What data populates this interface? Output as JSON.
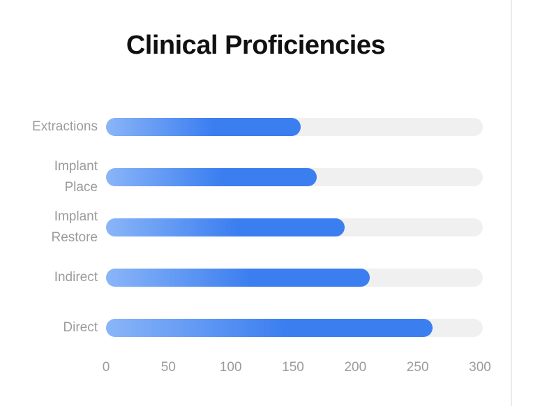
{
  "page": {
    "background": "#ffffff",
    "divider_color": "#ebebeb"
  },
  "chart_data": {
    "type": "bar",
    "orientation": "horizontal",
    "title": "Clinical Proficiencies",
    "categories": [
      "Extractions",
      "Implant Place",
      "Implant Restore",
      "Indirect",
      "Direct"
    ],
    "category_lines": [
      [
        "Extractions"
      ],
      [
        "Implant",
        "Place"
      ],
      [
        "Implant",
        "Restore"
      ],
      [
        "Indirect"
      ],
      [
        "Direct"
      ]
    ],
    "values": [
      155,
      168,
      190,
      210,
      260
    ],
    "xlabel": "",
    "ylabel": "",
    "xlim": [
      0,
      300
    ],
    "x_ticks": [
      "0",
      "50",
      "100",
      "150",
      "200",
      "250",
      "300"
    ],
    "x_tick_values": [
      0,
      50,
      100,
      150,
      200,
      250,
      300
    ],
    "grid": false,
    "legend": false,
    "track_max": 300,
    "colors": {
      "bar_gradient_start": "#8ab5f8",
      "bar_gradient_end": "#3b7ef0",
      "track": "#f0f0f1",
      "title_text": "#111111",
      "label_text": "#9b9b9b"
    }
  }
}
